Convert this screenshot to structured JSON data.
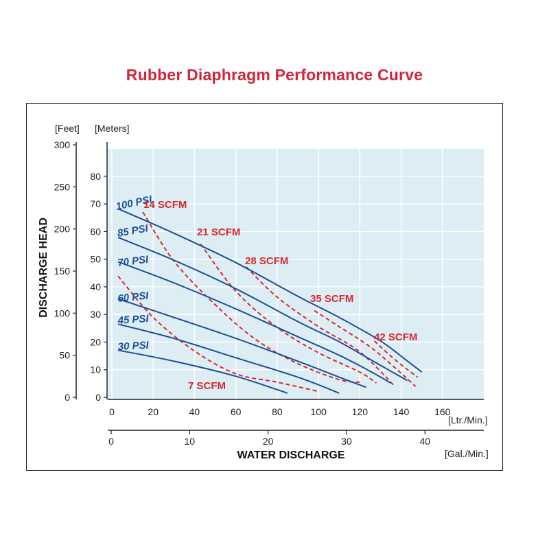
{
  "title": "Rubber Diaphragm Performance Curve",
  "colors": {
    "title": "#d0253a",
    "psi_curve": "#1f4e96",
    "scfm_curve": "#d8272e",
    "plot_bg": "#dcedf4",
    "grid": "#ffffff"
  },
  "chart_data": {
    "type": "line",
    "title": "Rubber Diaphragm Performance Curve",
    "xlabel": "WATER DISCHARGE",
    "ylabel": "DISCHARGE HEAD",
    "x_primary": {
      "unit": "[Ltr./Min.]",
      "ticks": [
        "0",
        "20",
        "40",
        "60",
        "80",
        "100",
        "120",
        "140",
        "160"
      ],
      "range": [
        0,
        180
      ]
    },
    "x_secondary": {
      "unit": "[Gal./Min.]",
      "ticks": [
        "0",
        "10",
        "20",
        "30",
        "40"
      ],
      "range": [
        0,
        47.5
      ]
    },
    "y_feet": {
      "unit": "[Feet]",
      "ticks": [
        "0",
        "50",
        "100",
        "150",
        "200",
        "250",
        "300"
      ],
      "range": [
        0,
        300
      ]
    },
    "y_meters": {
      "unit": "[Meters]",
      "ticks": [
        "0",
        "10",
        "20",
        "30",
        "40",
        "50",
        "60",
        "70",
        "80"
      ],
      "range": [
        0,
        91.4
      ]
    },
    "grid": true,
    "psi_series": [
      {
        "name": "100 PSI",
        "x": [
          3,
          30,
          60,
          90,
          110,
          130,
          142,
          150
        ],
        "y": [
          224,
          195,
          160,
          120,
          95,
          67,
          45,
          30
        ]
      },
      {
        "name": "85 PSI",
        "x": [
          3,
          30,
          60,
          90,
          110,
          130,
          143
        ],
        "y": [
          190,
          163,
          129,
          90,
          66,
          38,
          20
        ]
      },
      {
        "name": "70 PSI",
        "x": [
          3,
          30,
          60,
          90,
          110,
          125,
          135
        ],
        "y": [
          161,
          136,
          105,
          72,
          50,
          31,
          17
        ]
      },
      {
        "name": "60 PSI",
        "x": [
          3,
          30,
          60,
          90,
          110,
          123
        ],
        "y": [
          117,
          95,
          70,
          43,
          24,
          12
        ]
      },
      {
        "name": "45 PSI",
        "x": [
          3,
          30,
          60,
          90,
          110
        ],
        "y": [
          87,
          70,
          47,
          24,
          5
        ]
      },
      {
        "name": "30 PSI",
        "x": [
          3,
          30,
          60,
          85
        ],
        "y": [
          56,
          43,
          25,
          5
        ]
      }
    ],
    "scfm_series": [
      {
        "name": "7 SCFM",
        "x": [
          3,
          20,
          40,
          60,
          80,
          100
        ],
        "y": [
          144,
          95,
          55,
          28,
          18,
          7
        ]
      },
      {
        "name": "14 SCFM",
        "x": [
          15,
          30,
          50,
          70,
          90,
          110,
          120
        ],
        "y": [
          220,
          162,
          110,
          68,
          40,
          21,
          18
        ]
      },
      {
        "name": "21 SCFM",
        "x": [
          43,
          60,
          80,
          100,
          120,
          128
        ],
        "y": [
          182,
          126,
          83,
          53,
          30,
          17
        ]
      },
      {
        "name": "28 SCFM",
        "x": [
          65,
          80,
          100,
          120,
          137
        ],
        "y": [
          155,
          119,
          84,
          54,
          13
        ]
      },
      {
        "name": "35 SCFM",
        "x": [
          98,
          110,
          125,
          138,
          147
        ],
        "y": [
          103,
          84,
          60,
          33,
          13
        ]
      },
      {
        "name": "42 SCFM",
        "x": [
          127,
          135,
          142,
          148
        ],
        "y": [
          67,
          49,
          35,
          24
        ]
      }
    ]
  }
}
